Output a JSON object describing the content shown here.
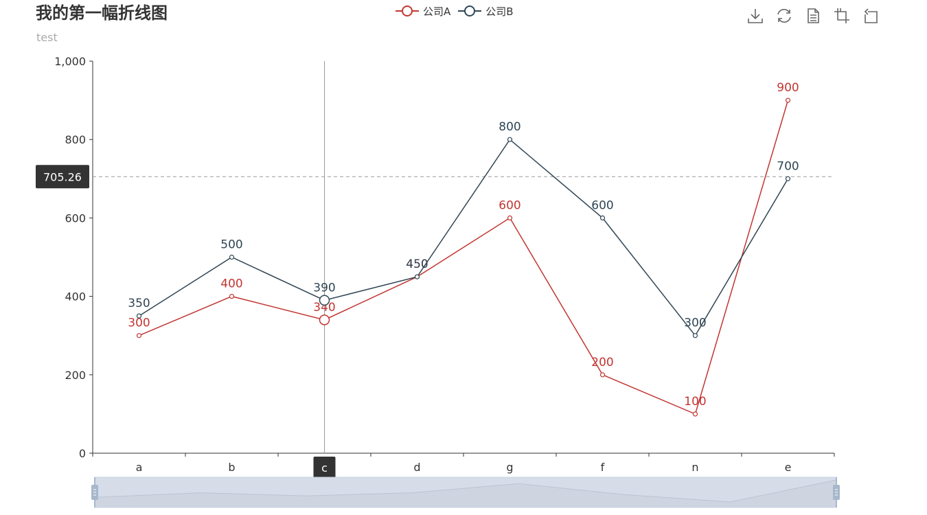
{
  "title": "我的第一幅折线图",
  "subtitle": "test",
  "legend": [
    {
      "name": "公司A",
      "color": "#c23531"
    },
    {
      "name": "公司B",
      "color": "#2f4554"
    }
  ],
  "toolbox": [
    {
      "name": "download",
      "icon": "download-icon"
    },
    {
      "name": "refresh",
      "icon": "refresh-icon"
    },
    {
      "name": "data-view",
      "icon": "document-icon"
    },
    {
      "name": "zoom",
      "icon": "zoom-icon"
    },
    {
      "name": "zoom-reset",
      "icon": "zoom-reset-icon"
    }
  ],
  "colors": {
    "axis": "#333333",
    "tooltip_bg": "#333333",
    "pointer": "#999999",
    "slider_fill": "#d6dde9",
    "slider_handle": "#a7b7cc"
  },
  "pointer": {
    "category": "c",
    "y_value_label": "705.26",
    "y_value": 705.26
  },
  "chart_data": {
    "type": "line",
    "title": "我的第一幅折线图",
    "subtitle": "test",
    "categories": [
      "a",
      "b",
      "c",
      "d",
      "g",
      "f",
      "n",
      "e"
    ],
    "series": [
      {
        "name": "公司A",
        "values": [
          300,
          400,
          340,
          450,
          600,
          200,
          100,
          900
        ]
      },
      {
        "name": "公司B",
        "values": [
          350,
          500,
          390,
          450,
          800,
          600,
          300,
          700
        ]
      }
    ],
    "value_labels": [
      [
        "300",
        "400",
        "340",
        "450",
        "600",
        "200",
        "100",
        "900"
      ],
      [
        "350",
        "500",
        "390",
        "450",
        "800",
        "600",
        "300",
        "700"
      ]
    ],
    "ylim": [
      0,
      1000
    ],
    "yticks": [
      0,
      200,
      400,
      600,
      800,
      1000
    ],
    "ytick_labels": [
      "0",
      "200",
      "400",
      "600",
      "800",
      "1,000"
    ],
    "xlabel": "",
    "ylabel": "",
    "grid": false,
    "legend_position": "top-center"
  }
}
